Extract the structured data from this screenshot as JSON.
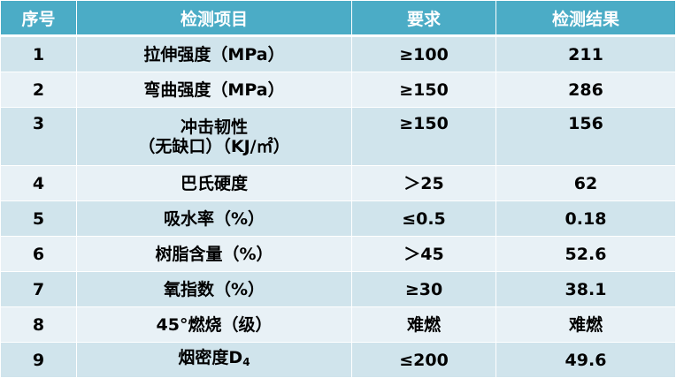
{
  "table": {
    "headers": [
      "序号",
      "检测项目",
      "要求",
      "检测结果"
    ],
    "rows": [
      {
        "no": "1",
        "item": "拉伸强度（MPa）",
        "requirement": "≥100",
        "result": "211"
      },
      {
        "no": "2",
        "item": "弯曲强度（MPa）",
        "requirement": "≥150",
        "result": "286"
      },
      {
        "no": "3",
        "item_line1": "冲击韧性",
        "item_line2": "（无缺口）（KJ/㎡）",
        "requirement": "≥150",
        "result": "156"
      },
      {
        "no": "4",
        "item": "巴氏硬度",
        "requirement": "＞25",
        "result": "62"
      },
      {
        "no": "5",
        "item": "吸水率（%）",
        "requirement": "≤0.5",
        "result": "0.18"
      },
      {
        "no": "6",
        "item": "树脂含量（%）",
        "requirement": "＞45",
        "result": "52.6"
      },
      {
        "no": "7",
        "item": "氧指数（%）",
        "requirement": "≥30",
        "result": "38.1"
      },
      {
        "no": "8",
        "item": "45°燃烧（级）",
        "requirement": "难燃",
        "result": "难燃"
      },
      {
        "no": "9",
        "item_main": "烟密度D",
        "item_sub": "4",
        "requirement": "≤200",
        "result": "49.6"
      }
    ]
  },
  "colors": {
    "header_bg": "#4bacc6",
    "header_text": "#ffffff",
    "row_band_dark": "#d0e4ec",
    "row_band_light": "#e8f1f6",
    "cell_text": "#000000"
  }
}
